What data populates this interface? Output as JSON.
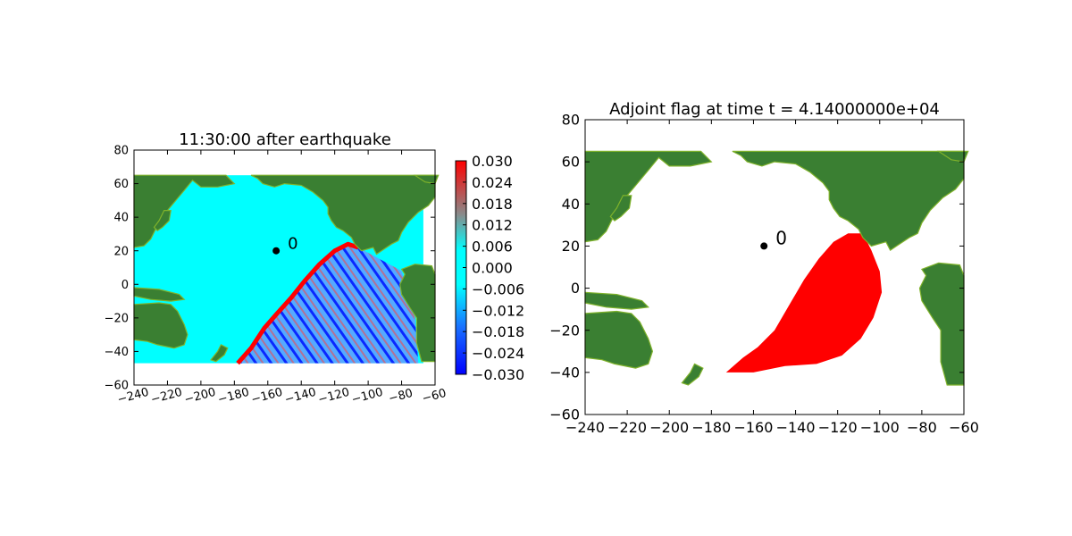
{
  "chart_data": [
    {
      "type": "heatmap",
      "title": "11:30:00 after earthquake",
      "xlim": [
        -240,
        -60
      ],
      "ylim": [
        -60,
        80
      ],
      "x_ticks": [
        -240,
        -220,
        -200,
        -180,
        -160,
        -140,
        -120,
        -100,
        -80,
        -60
      ],
      "y_ticks": [
        -60,
        -40,
        -20,
        0,
        20,
        40,
        60,
        80
      ],
      "x_tick_labels": [
        "−240",
        "−220",
        "−200",
        "−180",
        "−160",
        "−140",
        "−120",
        "−100",
        "−80",
        "−60"
      ],
      "y_tick_labels": [
        "−60",
        "−40",
        "−20",
        "0",
        "20",
        "40",
        "60",
        "80"
      ],
      "data_extent": {
        "x": [
          -240,
          -67
        ],
        "y": [
          -47,
          65
        ]
      },
      "marker": {
        "x": -155,
        "y": 20,
        "label": "0"
      },
      "colorbar": {
        "range": [
          -0.03,
          0.03
        ],
        "ticks": [
          0.03,
          0.024,
          0.018,
          0.012,
          0.006,
          0.0,
          -0.006,
          -0.012,
          -0.018,
          -0.024,
          -0.03
        ],
        "tick_labels": [
          "0.030",
          "0.024",
          "0.018",
          "0.012",
          "0.006",
          "0.000",
          "−0.006",
          "−0.012",
          "−0.018",
          "−0.024",
          "−0.030"
        ]
      },
      "wavefront": [
        [
          -178,
          -47
        ],
        [
          -170,
          -38
        ],
        [
          -162,
          -26
        ],
        [
          -155,
          -18
        ],
        [
          -146,
          -8
        ],
        [
          -138,
          2
        ],
        [
          -129,
          12
        ],
        [
          -120,
          20
        ],
        [
          -112,
          24
        ],
        [
          -106,
          22
        ]
      ],
      "grid": false
    },
    {
      "type": "heatmap",
      "title": "Adjoint flag at time t = 4.14000000e+04",
      "xlim": [
        -240,
        -60
      ],
      "ylim": [
        -60,
        80
      ],
      "x_ticks": [
        -240,
        -220,
        -200,
        -180,
        -160,
        -140,
        -120,
        -100,
        -80,
        -60
      ],
      "y_ticks": [
        -60,
        -40,
        -20,
        0,
        20,
        40,
        60,
        80
      ],
      "x_tick_labels": [
        "−240",
        "−220",
        "−200",
        "−180",
        "−160",
        "−140",
        "−120",
        "−100",
        "−80",
        "−60"
      ],
      "y_tick_labels": [
        "−60",
        "−40",
        "−20",
        "0",
        "20",
        "40",
        "60",
        "80"
      ],
      "marker": {
        "x": -155,
        "y": 20,
        "label": "0"
      },
      "flagged_region": [
        [
          -173,
          -40
        ],
        [
          -165,
          -33
        ],
        [
          -158,
          -28
        ],
        [
          -150,
          -20
        ],
        [
          -143,
          -8
        ],
        [
          -136,
          4
        ],
        [
          -129,
          14
        ],
        [
          -122,
          22
        ],
        [
          -115,
          26
        ],
        [
          -108,
          26
        ],
        [
          -104,
          18
        ],
        [
          -100,
          8
        ],
        [
          -99,
          -2
        ],
        [
          -103,
          -14
        ],
        [
          -109,
          -24
        ],
        [
          -118,
          -32
        ],
        [
          -130,
          -36
        ],
        [
          -145,
          -37
        ],
        [
          -160,
          -40
        ]
      ],
      "grid": false
    }
  ],
  "colors": {
    "ocean": "#00ffff",
    "land": "#3a7f32",
    "land_edge": "#7fb22b",
    "flag": "#ff0000",
    "wave_high": "#ff0000",
    "wave_low": "#0000ff"
  }
}
